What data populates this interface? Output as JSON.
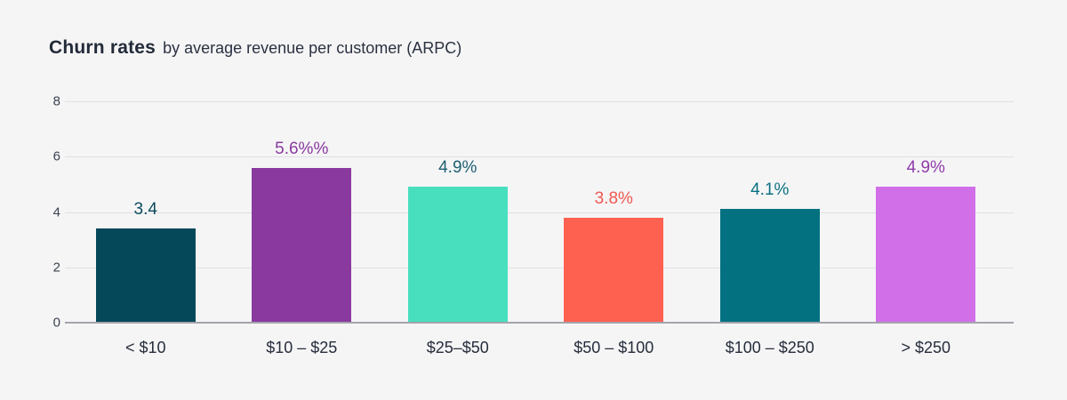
{
  "page": {
    "background": "#f5f5f6"
  },
  "header": {
    "title_bold": "Churn rates",
    "title_rest": "by average revenue per customer (ARPC)"
  },
  "chart_data": {
    "type": "bar",
    "title": "Churn rates by average revenue per customer (ARPC)",
    "categories": [
      "< $10",
      "$10 – $25",
      "$25–$50",
      "$50 – $100",
      "$100 – $250",
      "> $250"
    ],
    "values": [
      3.4,
      5.6,
      4.9,
      3.8,
      4.1,
      4.9
    ],
    "value_labels": [
      "3.4",
      "5.6%%",
      "4.9%",
      "3.8%",
      "4.1%",
      "4.9%"
    ],
    "bar_colors": [
      "#05485a",
      "#8a3a9e",
      "#48dfbf",
      "#fe6150",
      "#047181",
      "#d16fe8"
    ],
    "value_label_colors": [
      "#0b4a5c",
      "#8a3a9e",
      "#1d6071",
      "#ef5850",
      "#0a7181",
      "#8f3ca9"
    ],
    "xlabel": "",
    "ylabel": "",
    "y_ticks": [
      0,
      2,
      4,
      6,
      8
    ],
    "ylim": [
      0,
      8
    ],
    "grid": true,
    "legend": "none",
    "gridline_color": "#e0e0e6",
    "axis_line_color": "#a3a4ac",
    "tick_label_color": "#3c4250",
    "category_label_color": "#262d3b"
  }
}
